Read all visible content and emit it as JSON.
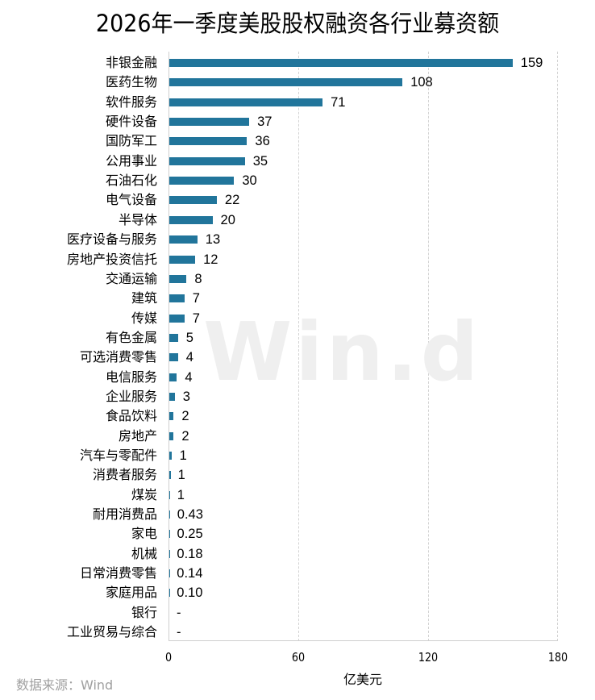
{
  "chart_data": {
    "type": "bar",
    "orientation": "horizontal",
    "title": "2026年一季度美股股权融资各行业募资额",
    "xlabel": "亿美元",
    "ylabel": "",
    "xlim": [
      0,
      180
    ],
    "xticks": [
      "0",
      "60",
      "120",
      "180"
    ],
    "grid": "vertical dashed",
    "legend": null,
    "bar_color": "#21759b",
    "categories": [
      "非银金融",
      "医药生物",
      "软件服务",
      "硬件设备",
      "国防军工",
      "公用事业",
      "石油石化",
      "电气设备",
      "半导体",
      "医疗设备与服务",
      "房地产投资信托",
      "交通运输",
      "建筑",
      "传媒",
      "有色金属",
      "可选消费零售",
      "电信服务",
      "企业服务",
      "食品饮料",
      "房地产",
      "汽车与零配件",
      "消费者服务",
      "煤炭",
      "耐用消费品",
      "家电",
      "机械",
      "日常消费零售",
      "家庭用品",
      "银行",
      "工业贸易与综合"
    ],
    "values": [
      159,
      108,
      71,
      37,
      36,
      35,
      30,
      22,
      20,
      13,
      12,
      8,
      7,
      7,
      5,
      4,
      4,
      3,
      2,
      2,
      1,
      1,
      1,
      0.43,
      0.25,
      0.18,
      0.14,
      0.1,
      null,
      null
    ],
    "labels": [
      "159",
      "108",
      "71",
      "37",
      "36",
      "35",
      "30",
      "22",
      "20",
      "13",
      "12",
      "8",
      "7",
      "7",
      "5",
      "4",
      "4",
      "3",
      "2",
      "2",
      "1",
      "1",
      "1",
      "0.43",
      "0.25",
      "0.18",
      "0.14",
      "0.10",
      "-",
      "-"
    ],
    "bar_widths_approx": [
      159,
      108,
      71,
      37,
      36,
      35,
      30,
      22,
      20,
      13,
      12,
      8,
      7,
      7,
      4,
      4,
      3.5,
      2.5,
      2,
      2,
      1,
      0.6,
      0.3,
      0.3,
      0.2,
      0.15,
      0.1,
      0.1,
      0,
      0
    ]
  },
  "source": "数据来源：Wind",
  "watermark": "Win.d"
}
